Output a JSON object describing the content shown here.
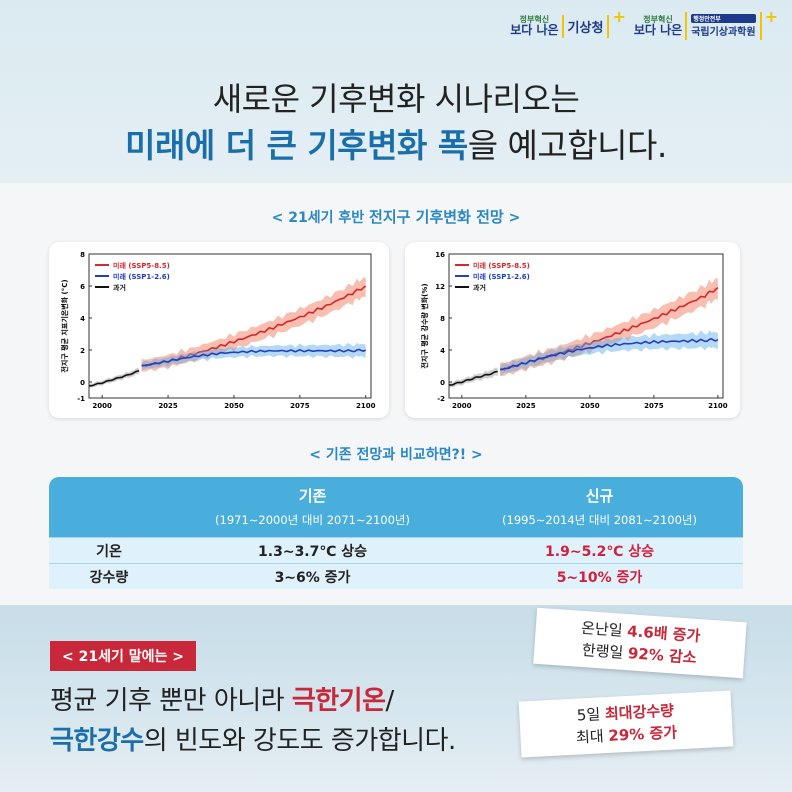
{
  "header": {
    "logo1": {
      "small": "정부혁신",
      "main": "보다 나은",
      "name": "기상청"
    },
    "logo2": {
      "small": "정부혁신",
      "main": "보다 나은",
      "tag": "행정안전부",
      "name": "국립기상과학원"
    },
    "title_line1": "새로운 기후변화 시나리오는",
    "title_line2_bold": "미래에 더 큰 기후변화 폭",
    "title_line2_rest": "을 예고합니다."
  },
  "section1": {
    "open": "<",
    "prefix": "21세기 후반",
    "strong": "전지구 기후변화 전망",
    "close": ">"
  },
  "section2": {
    "open": "<",
    "text": "기존 전망과 비교하면?!",
    "close": ">"
  },
  "colors": {
    "ssp585": "#d7262d",
    "ssp126": "#1f3fbf",
    "past": "#111111",
    "accent_blue": "#4aaedc",
    "accent_red": "#c8283a"
  },
  "chart_data": [
    {
      "type": "line",
      "ylabel": "전지구 평균 지표기온변화 (°C)",
      "xlim": [
        1995,
        2102
      ],
      "ylim": [
        -1,
        8
      ],
      "xticks": [
        "2000",
        "2025",
        "2050",
        "2075",
        "2100"
      ],
      "yticks": [
        "-1",
        "0",
        "2",
        "4",
        "6",
        "8"
      ],
      "legend": [
        "미래 (SSP5-8.5)",
        "미래 (SSP1-2.6)",
        "과거"
      ],
      "x_future": [
        2015,
        2025,
        2035,
        2045,
        2055,
        2065,
        2075,
        2085,
        2095,
        2100
      ],
      "series": [
        {
          "name": "미래 (SSP5-8.5)",
          "values": [
            1.0,
            1.3,
            1.75,
            2.25,
            2.8,
            3.4,
            4.05,
            4.75,
            5.55,
            6.0
          ],
          "spread": 0.6
        },
        {
          "name": "미래 (SSP1-2.6)",
          "values": [
            1.0,
            1.3,
            1.6,
            1.8,
            1.9,
            1.95,
            1.95,
            1.95,
            1.95,
            2.0
          ],
          "spread": 0.4
        },
        {
          "name": "과거",
          "x": [
            1995,
            2000,
            2005,
            2010,
            2014
          ],
          "values": [
            -0.25,
            -0.05,
            0.2,
            0.45,
            0.7
          ],
          "spread": 0.2
        }
      ]
    },
    {
      "type": "line",
      "ylabel": "전지구 평균 강수량 변화(%)",
      "xlim": [
        1995,
        2102
      ],
      "ylim": [
        -2,
        16
      ],
      "xticks": [
        "2000",
        "2025",
        "2050",
        "2075",
        "2100"
      ],
      "yticks": [
        "-2",
        "0",
        "4",
        "8",
        "12",
        "16"
      ],
      "legend": [
        "미래 (SSP5-8.5)",
        "미래 (SSP1-2.6)",
        "과거"
      ],
      "x_future": [
        2015,
        2025,
        2035,
        2045,
        2055,
        2065,
        2075,
        2085,
        2095,
        2100
      ],
      "series": [
        {
          "name": "미래 (SSP5-8.5)",
          "values": [
            1.5,
            2.4,
            3.3,
            4.3,
            5.4,
            6.6,
            7.9,
            9.3,
            10.8,
            11.8
          ],
          "spread": 1.3
        },
        {
          "name": "미래 (SSP1-2.6)",
          "values": [
            1.5,
            2.4,
            3.3,
            4.0,
            4.5,
            4.8,
            5.0,
            5.1,
            5.2,
            5.3
          ],
          "spread": 1.0
        },
        {
          "name": "과거",
          "x": [
            1995,
            2000,
            2005,
            2010,
            2014
          ],
          "values": [
            -0.4,
            0.0,
            0.5,
            0.9,
            1.3
          ],
          "spread": 0.5
        }
      ]
    }
  ],
  "table": {
    "headers": [
      {
        "title": "기존",
        "sub": "(1971∼2000년 대비 2071∼2100년)"
      },
      {
        "title": "신규",
        "sub": "(1995∼2014년 대비 2081∼2100년)"
      }
    ],
    "rows": [
      {
        "label": "기온",
        "old": "1.3∼3.7℃ 상승",
        "new": "1.9∼5.2℃ 상승"
      },
      {
        "label": "강수량",
        "old": "3∼6% 증가",
        "new": "5~10% 증가"
      }
    ]
  },
  "bottom": {
    "badge": "< 21세기 말에는 >",
    "line1_a": "평균 기후 뿐만 아니라 ",
    "line1_red": "극한기온",
    "line1_b": "/",
    "line2_blue": "극한강수",
    "line2_rest": "의 빈도와 강도도 증가합니다.",
    "note1": {
      "a": "온난일 ",
      "a_red": "4.6배 증가",
      "b": "한랭일 ",
      "b_red": "92% 감소"
    },
    "note2": {
      "a": "5일 ",
      "a_red": "최대강수량",
      "b": "최대 ",
      "b_red": "29% 증가"
    }
  }
}
